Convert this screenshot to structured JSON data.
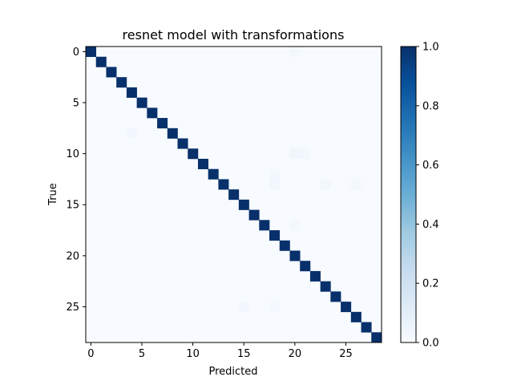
{
  "chart_data": {
    "type": "heatmap",
    "title": "resnet model with transformations",
    "xlabel": "Predicted",
    "ylabel": "True",
    "size": 29,
    "xticks": [
      0,
      5,
      10,
      15,
      20,
      25
    ],
    "yticks": [
      0,
      5,
      10,
      15,
      20,
      25
    ],
    "value_range": [
      0.0,
      1.0
    ],
    "colormap": "Blues",
    "colorbar_ticks": [
      "0.0",
      "0.2",
      "0.4",
      "0.6",
      "0.8",
      "1.0"
    ],
    "diagonal_value": 1.0,
    "off_diagonal_value": 0.0,
    "faint_cells": [
      {
        "row": 0,
        "col": 20,
        "value": 0.02
      },
      {
        "row": 8,
        "col": 4,
        "value": 0.03
      },
      {
        "row": 10,
        "col": 20,
        "value": 0.04
      },
      {
        "row": 10,
        "col": 21,
        "value": 0.03
      },
      {
        "row": 12,
        "col": 18,
        "value": 0.02
      },
      {
        "row": 13,
        "col": 18,
        "value": 0.03
      },
      {
        "row": 13,
        "col": 23,
        "value": 0.03
      },
      {
        "row": 13,
        "col": 26,
        "value": 0.02
      },
      {
        "row": 17,
        "col": 20,
        "value": 0.02
      },
      {
        "row": 25,
        "col": 15,
        "value": 0.02
      },
      {
        "row": 25,
        "col": 18,
        "value": 0.02
      }
    ]
  }
}
